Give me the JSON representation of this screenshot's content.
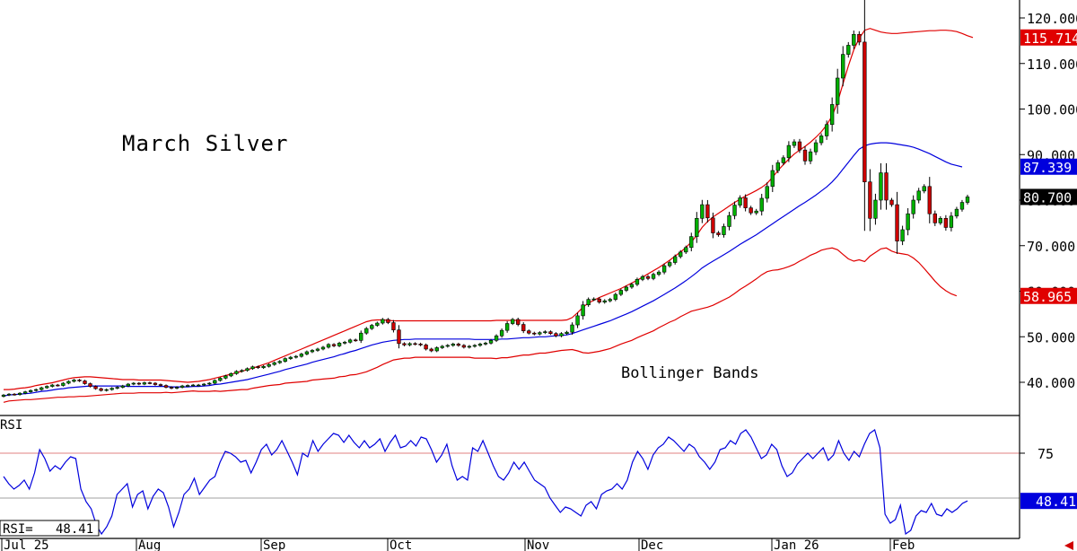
{
  "chart_data": [
    {
      "type": "candlestick",
      "title": "March Silver",
      "annotation": "Bollinger Bands",
      "x_tick_labels": [
        "Jul 25",
        "Aug",
        "Sep",
        "Oct",
        "Nov",
        "Dec",
        "Jan 26",
        "Feb"
      ],
      "y_tick_labels": [
        "120.000",
        "110.000",
        "100.000",
        "90.000",
        "80.000",
        "70.000",
        "60.000",
        "50.000",
        "40.000"
      ],
      "ylim": [
        32,
        122
      ],
      "value_labels": {
        "upper_band": "115.714",
        "middle_band": "87.339",
        "last_price": "80.700",
        "lower_band": "58.965"
      },
      "colors": {
        "up": "#00b000",
        "down": "#cc0000",
        "band": "#e00000",
        "middle": "#0000dd",
        "price_tag": "#000000"
      },
      "close": [
        37.2,
        37.4,
        37.3,
        37.6,
        37.9,
        38.2,
        38.4,
        38.8,
        39.1,
        39.4,
        39.3,
        39.8,
        40.2,
        40.5,
        40.3,
        39.7,
        39.1,
        38.6,
        38.2,
        38.4,
        38.7,
        38.9,
        39.2,
        39.6,
        39.8,
        39.6,
        39.9,
        39.8,
        39.5,
        39.3,
        38.9,
        38.7,
        38.9,
        39.2,
        39.3,
        39.4,
        39.4,
        39.6,
        39.8,
        40.4,
        40.9,
        41.4,
        41.9,
        42.4,
        42.6,
        43.0,
        43.4,
        43.2,
        43.5,
        43.9,
        44.3,
        44.6,
        45.2,
        45.5,
        45.7,
        46.2,
        46.7,
        47.0,
        47.3,
        47.7,
        48.3,
        48.0,
        48.6,
        48.8,
        49.3,
        49.2,
        50.8,
        51.8,
        52.5,
        53.0,
        53.8,
        53.1,
        51.5,
        48.5,
        48.2,
        48.5,
        48.4,
        48.2,
        47.3,
        46.9,
        47.6,
        47.9,
        48.1,
        48.4,
        48.1,
        47.7,
        47.9,
        48.1,
        48.4,
        48.6,
        49.2,
        50.2,
        51.4,
        52.9,
        53.8,
        52.7,
        51.3,
        50.8,
        50.6,
        50.9,
        51.1,
        50.7,
        50.2,
        50.7,
        51.0,
        52.6,
        54.6,
        57.0,
        58.2,
        58.3,
        57.6,
        57.9,
        58.2,
        59.3,
        60.2,
        60.9,
        61.5,
        62.6,
        63.2,
        62.8,
        63.7,
        64.2,
        65.6,
        66.3,
        67.6,
        68.6,
        69.6,
        72.0,
        76.0,
        79.0,
        76.1,
        72.8,
        72.4,
        74.2,
        76.6,
        78.9,
        80.5,
        78.3,
        77.2,
        77.6,
        80.4,
        83.0,
        86.5,
        88.2,
        89.3,
        92.0,
        92.8,
        91.0,
        88.6,
        90.6,
        92.6,
        94.1,
        96.6,
        101.0,
        106.8,
        112.0,
        114.0,
        116.4,
        114.7,
        84.0,
        76.0,
        80.0,
        86.0,
        80.0,
        79.0,
        71.0,
        73.5,
        77.0,
        80.0,
        82.0,
        83.0,
        77.0,
        75.0,
        76.0,
        74.0,
        76.5,
        78.0,
        79.5,
        80.7
      ],
      "upper_band": [
        38.4,
        38.4,
        38.5,
        38.7,
        38.8,
        39.0,
        39.3,
        39.5,
        39.7,
        39.9,
        40.2,
        40.5,
        40.8,
        41.0,
        41.1,
        41.2,
        41.2,
        41.1,
        41.0,
        40.9,
        40.8,
        40.7,
        40.6,
        40.6,
        40.6,
        40.5,
        40.5,
        40.5,
        40.5,
        40.5,
        40.4,
        40.3,
        40.2,
        40.1,
        40.0,
        40.1,
        40.2,
        40.4,
        40.6,
        40.9,
        41.2,
        41.5,
        41.8,
        42.1,
        42.4,
        42.8,
        43.1,
        43.5,
        43.9,
        44.3,
        44.8,
        45.3,
        45.8,
        46.3,
        46.8,
        47.3,
        47.8,
        48.3,
        48.8,
        49.3,
        49.8,
        50.3,
        50.8,
        51.3,
        51.8,
        52.3,
        52.8,
        53.3,
        53.6,
        53.7,
        53.7,
        53.6,
        53.5,
        53.5,
        53.5,
        53.5,
        53.5,
        53.5,
        53.5,
        53.5,
        53.5,
        53.5,
        53.5,
        53.5,
        53.5,
        53.5,
        53.5,
        53.5,
        53.5,
        53.5,
        53.5,
        53.6,
        53.6,
        53.6,
        53.6,
        53.6,
        53.6,
        53.6,
        53.6,
        53.6,
        53.6,
        53.6,
        53.6,
        53.6,
        53.7,
        54.2,
        55.3,
        56.5,
        57.4,
        58.0,
        58.6,
        59.1,
        59.6,
        60.1,
        60.6,
        61.2,
        61.8,
        62.4,
        63.1,
        63.8,
        64.5,
        65.2,
        66.0,
        66.8,
        67.7,
        68.6,
        69.6,
        70.8,
        72.3,
        74.0,
        75.3,
        76.3,
        77.1,
        77.9,
        78.7,
        79.5,
        80.2,
        80.9,
        81.5,
        82.1,
        82.8,
        83.7,
        85.0,
        86.5,
        87.8,
        89.0,
        90.1,
        91.0,
        91.8,
        92.7,
        93.8,
        95.0,
        96.5,
        98.5,
        101.5,
        105.5,
        109.5,
        113.0,
        115.5,
        117.3,
        117.7,
        117.3,
        116.9,
        116.7,
        116.6,
        116.6,
        116.7,
        116.8,
        116.9,
        117.0,
        117.1,
        117.2,
        117.2,
        117.3,
        117.3,
        117.2,
        117.0,
        116.6,
        116.1,
        115.7
      ],
      "middle_band": [
        37.0,
        37.2,
        37.3,
        37.4,
        37.5,
        37.6,
        37.8,
        38.0,
        38.1,
        38.3,
        38.5,
        38.6,
        38.8,
        38.9,
        39.0,
        39.1,
        39.2,
        39.2,
        39.2,
        39.2,
        39.2,
        39.2,
        39.2,
        39.1,
        39.1,
        39.1,
        39.1,
        39.1,
        39.1,
        39.1,
        39.1,
        39.0,
        39.0,
        39.0,
        39.0,
        39.1,
        39.1,
        39.2,
        39.3,
        39.5,
        39.6,
        39.8,
        40.0,
        40.2,
        40.4,
        40.6,
        40.9,
        41.2,
        41.5,
        41.8,
        42.1,
        42.4,
        42.8,
        43.1,
        43.4,
        43.7,
        44.0,
        44.4,
        44.7,
        45.0,
        45.3,
        45.6,
        46.0,
        46.3,
        46.7,
        47.0,
        47.4,
        47.8,
        48.2,
        48.5,
        48.8,
        49.0,
        49.2,
        49.3,
        49.4,
        49.4,
        49.5,
        49.5,
        49.5,
        49.5,
        49.5,
        49.5,
        49.5,
        49.5,
        49.5,
        49.5,
        49.5,
        49.4,
        49.4,
        49.4,
        49.4,
        49.4,
        49.5,
        49.5,
        49.6,
        49.7,
        49.8,
        49.8,
        49.9,
        50.0,
        50.0,
        50.1,
        50.2,
        50.3,
        50.4,
        50.7,
        51.1,
        51.5,
        51.9,
        52.3,
        52.7,
        53.1,
        53.5,
        54.0,
        54.5,
        55.0,
        55.5,
        56.1,
        56.7,
        57.3,
        57.9,
        58.6,
        59.3,
        60.0,
        60.7,
        61.5,
        62.3,
        63.2,
        64.1,
        65.1,
        65.9,
        66.6,
        67.3,
        68.0,
        68.7,
        69.5,
        70.3,
        71.0,
        71.7,
        72.4,
        73.2,
        74.0,
        74.8,
        75.6,
        76.4,
        77.2,
        78.0,
        78.8,
        79.5,
        80.3,
        81.1,
        82.0,
        82.9,
        84.0,
        85.3,
        86.8,
        88.3,
        89.8,
        91.2,
        91.9,
        92.3,
        92.5,
        92.6,
        92.6,
        92.5,
        92.3,
        92.1,
        91.9,
        91.6,
        91.2,
        90.7,
        90.2,
        89.6,
        89.0,
        88.4,
        87.9,
        87.6,
        87.3
      ],
      "lower_band": [
        35.6,
        35.9,
        36.0,
        36.1,
        36.2,
        36.2,
        36.3,
        36.4,
        36.5,
        36.6,
        36.7,
        36.7,
        36.8,
        36.8,
        36.9,
        36.9,
        37.0,
        37.1,
        37.2,
        37.3,
        37.4,
        37.5,
        37.6,
        37.6,
        37.6,
        37.7,
        37.7,
        37.7,
        37.7,
        37.7,
        37.8,
        37.7,
        37.8,
        37.9,
        38.0,
        38.1,
        38.0,
        38.0,
        38.0,
        38.1,
        38.0,
        38.1,
        38.2,
        38.3,
        38.4,
        38.4,
        38.7,
        38.9,
        39.1,
        39.3,
        39.4,
        39.5,
        39.8,
        39.9,
        40.0,
        40.1,
        40.2,
        40.5,
        40.6,
        40.7,
        40.8,
        40.9,
        41.2,
        41.3,
        41.6,
        41.7,
        42.0,
        42.3,
        42.8,
        43.3,
        43.9,
        44.4,
        44.9,
        45.1,
        45.3,
        45.3,
        45.5,
        45.5,
        45.5,
        45.5,
        45.5,
        45.5,
        45.5,
        45.5,
        45.5,
        45.5,
        45.5,
        45.3,
        45.3,
        45.3,
        45.3,
        45.2,
        45.4,
        45.4,
        45.6,
        45.8,
        46.0,
        46.0,
        46.2,
        46.4,
        46.4,
        46.6,
        46.8,
        47.0,
        47.1,
        47.2,
        46.9,
        46.5,
        46.4,
        46.6,
        46.8,
        47.1,
        47.4,
        47.9,
        48.4,
        48.8,
        49.2,
        49.8,
        50.3,
        50.8,
        51.3,
        52.0,
        52.6,
        53.2,
        53.7,
        54.4,
        55.0,
        55.6,
        55.9,
        56.2,
        56.5,
        56.9,
        57.5,
        58.1,
        58.7,
        59.5,
        60.4,
        61.1,
        61.9,
        62.7,
        63.6,
        64.3,
        64.6,
        64.7,
        65.0,
        65.4,
        65.9,
        66.6,
        67.2,
        67.9,
        68.4,
        69.0,
        69.3,
        69.5,
        69.1,
        68.1,
        67.1,
        66.6,
        66.9,
        66.5,
        67.7,
        68.5,
        69.3,
        69.5,
        68.8,
        68.4,
        68.2,
        68.0,
        67.3,
        66.3,
        65.0,
        63.6,
        62.2,
        61.0,
        60.1,
        59.4,
        58.97
      ]
    },
    {
      "type": "line",
      "title": "RSI",
      "current_label": "RSI=   48.41",
      "value_tag": "48.41",
      "y_tick_labels": [
        "75"
      ],
      "ylim": [
        15,
        97
      ],
      "reference_lines": [
        75,
        50
      ],
      "color": "#0000dd",
      "values": [
        62,
        58,
        55,
        57,
        60,
        55,
        64,
        77,
        72,
        65,
        68,
        66,
        70,
        73,
        72,
        55,
        48,
        44,
        35,
        30,
        34,
        40,
        52,
        55,
        58,
        45,
        52,
        54,
        44,
        51,
        55,
        53,
        45,
        34,
        42,
        52,
        55,
        61,
        52,
        56,
        60,
        62,
        70,
        76,
        75,
        73,
        70,
        71,
        64,
        70,
        77,
        80,
        74,
        77,
        82,
        76,
        70,
        63,
        75,
        73,
        82,
        76,
        80,
        83,
        86,
        85,
        81,
        85,
        81,
        78,
        82,
        78,
        80,
        83,
        76,
        81,
        85,
        78,
        79,
        82,
        79,
        84,
        83,
        77,
        70,
        74,
        80,
        68,
        60,
        62,
        60,
        78,
        76,
        82,
        75,
        68,
        62,
        60,
        64,
        70,
        66,
        70,
        65,
        60,
        58,
        56,
        50,
        46,
        42,
        45,
        44,
        42,
        40,
        46,
        48,
        44,
        52,
        54,
        55,
        58,
        55,
        60,
        70,
        76,
        72,
        66,
        74,
        78,
        80,
        84,
        82,
        79,
        76,
        80,
        78,
        73,
        70,
        66,
        70,
        77,
        78,
        82,
        80,
        86,
        88,
        84,
        78,
        72,
        74,
        80,
        77,
        68,
        62,
        64,
        69,
        72,
        75,
        72,
        75,
        78,
        71,
        74,
        82,
        75,
        71,
        76,
        73,
        80,
        86,
        88,
        78,
        41,
        36,
        38,
        46,
        30,
        32,
        40,
        43,
        42,
        47,
        41,
        40,
        44,
        42,
        44,
        47,
        48.41
      ]
    }
  ]
}
